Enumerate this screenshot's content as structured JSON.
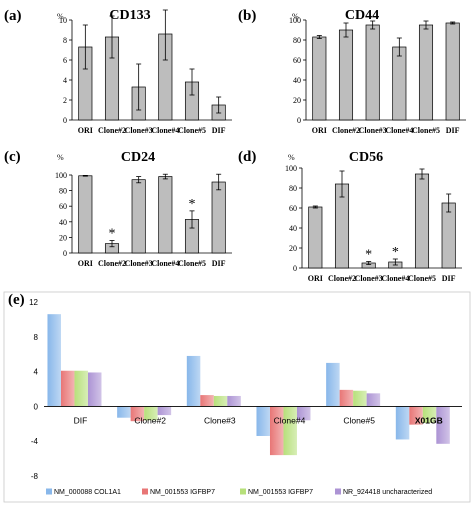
{
  "panels": [
    {
      "id": "a",
      "panel_label": "(a)",
      "chart_data": {
        "type": "bar",
        "title": "CD133",
        "ylabel": "%",
        "categories": [
          "ORI",
          "Clone#2",
          "Clone#3",
          "Clone#4",
          "Clone#5",
          "DIF"
        ],
        "values": [
          7.3,
          8.3,
          3.3,
          8.6,
          3.8,
          1.5
        ],
        "errors": [
          2.2,
          2.1,
          2.3,
          2.6,
          1.3,
          0.8
        ],
        "yticks": [
          0,
          2,
          4,
          6,
          8,
          10
        ],
        "ylim": [
          0,
          10
        ],
        "significant": [],
        "grid": false
      }
    },
    {
      "id": "b",
      "panel_label": "(b)",
      "chart_data": {
        "type": "bar",
        "title": "CD44",
        "ylabel": "%",
        "categories": [
          "ORI",
          "Clone#2",
          "Clone#3",
          "Clone#4",
          "Clone#5",
          "DIF"
        ],
        "values": [
          83,
          90,
          95,
          73,
          95,
          97
        ],
        "errors": [
          1.5,
          7,
          4,
          9,
          4,
          1
        ],
        "yticks": [
          0,
          20,
          40,
          60,
          80,
          100
        ],
        "ylim": [
          0,
          100
        ],
        "significant": [],
        "grid": false
      }
    },
    {
      "id": "c",
      "panel_label": "(c)",
      "chart_data": {
        "type": "bar",
        "title": "CD24",
        "ylabel": "%",
        "categories": [
          "ORI",
          "Clone#2",
          "Clone#3",
          "Clone#4",
          "Clone#5",
          "DIF"
        ],
        "values": [
          99,
          12,
          94,
          98,
          43,
          91
        ],
        "errors": [
          0.5,
          4,
          4,
          3,
          11,
          10
        ],
        "yticks": [
          0,
          20,
          40,
          60,
          80,
          100
        ],
        "ylim": [
          0,
          100
        ],
        "significant": [
          1,
          4
        ],
        "significance_mark": "*",
        "grid": false
      }
    },
    {
      "id": "d",
      "panel_label": "(d)",
      "chart_data": {
        "type": "bar",
        "title": "CD56",
        "ylabel": "%",
        "categories": [
          "ORI",
          "Clone#2",
          "Clone#3",
          "Clone#4",
          "Clone#5",
          "DIF"
        ],
        "values": [
          61,
          84,
          5,
          6,
          94,
          65
        ],
        "errors": [
          1,
          13,
          1.5,
          3,
          5,
          9
        ],
        "yticks": [
          0,
          20,
          40,
          60,
          80,
          100
        ],
        "ylim": [
          0,
          100
        ],
        "significant": [
          2,
          3
        ],
        "significance_mark": "*",
        "grid": false
      }
    },
    {
      "id": "e",
      "panel_label": "(e)",
      "chart_data": {
        "type": "bar",
        "categories": [
          "DIF",
          "Clone#2",
          "Clone#3",
          "Clone#4",
          "Clone#5",
          "X01GB"
        ],
        "series": [
          {
            "name": "NM_000088 COL1A1",
            "color": "#88b7ea",
            "values": [
              10.6,
              -1.3,
              5.8,
              -3.4,
              5.0,
              -3.8
            ]
          },
          {
            "name": "NM_001553 IGFBP7",
            "color": "#e87676",
            "values": [
              4.1,
              -1.7,
              1.3,
              -5.6,
              1.9,
              -2.1
            ]
          },
          {
            "name": "NM_001553 IGFBP7",
            "color": "#b7e07b",
            "values": [
              4.1,
              -1.6,
              1.2,
              -5.6,
              1.8,
              -1.9
            ]
          },
          {
            "name": "NR_924418 uncharacterized",
            "color": "#ac93d4",
            "values": [
              3.9,
              -1.0,
              1.2,
              -1.6,
              1.5,
              -4.3
            ]
          }
        ],
        "yticks": [
          -8,
          -4,
          0,
          4,
          8,
          12
        ],
        "ylim": [
          -8,
          12
        ],
        "legend": "bottom",
        "grid": false
      }
    }
  ]
}
